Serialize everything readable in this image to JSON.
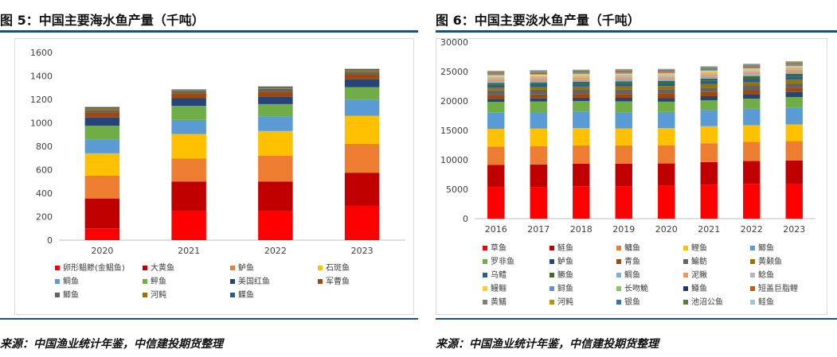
{
  "chart_data": [
    {
      "type": "bar",
      "stacked": true,
      "title": "图 5：中国主要海水鱼产量（千吨）",
      "source": "来源：中国渔业统计年鉴，中信建投期货整理",
      "categories": [
        "2020",
        "2021",
        "2022",
        "2023"
      ],
      "ylim": [
        0,
        1600
      ],
      "yticks": [
        0,
        200,
        400,
        600,
        800,
        1000,
        1200,
        1400,
        1600
      ],
      "grid": false,
      "legend_position": "bottom",
      "series": [
        {
          "name": "卵形鲳鲹(金鲳鱼)",
          "color": "#ff0000",
          "values": [
            100,
            245,
            245,
            295
          ]
        },
        {
          "name": "大黄鱼",
          "color": "#c00000",
          "values": [
            255,
            255,
            255,
            280
          ]
        },
        {
          "name": "鲈鱼",
          "color": "#ed7d31",
          "values": [
            195,
            195,
            220,
            245
          ]
        },
        {
          "name": "石斑鱼",
          "color": "#ffc000",
          "values": [
            190,
            210,
            210,
            240
          ]
        },
        {
          "name": "鲷鱼",
          "color": "#5b9bd5",
          "values": [
            120,
            120,
            125,
            135
          ]
        },
        {
          "name": "鲆鱼",
          "color": "#70ad47",
          "values": [
            115,
            120,
            105,
            110
          ]
        },
        {
          "name": "美国红鱼",
          "color": "#264478",
          "values": [
            70,
            65,
            65,
            65
          ]
        },
        {
          "name": "军曹鱼",
          "color": "#9e480e",
          "values": [
            40,
            40,
            40,
            40
          ]
        },
        {
          "name": "鲫鱼",
          "color": "#636363",
          "values": [
            25,
            20,
            25,
            25
          ]
        },
        {
          "name": "河鲀",
          "color": "#997300",
          "values": [
            15,
            10,
            10,
            15
          ]
        },
        {
          "name": "鲽鱼",
          "color": "#255e91",
          "values": [
            10,
            5,
            10,
            10
          ]
        }
      ]
    },
    {
      "type": "bar",
      "stacked": true,
      "title": "图 6：中国主要淡水鱼产量（千吨）",
      "source": "来源：中国渔业统计年鉴，中信建投期货整理",
      "categories": [
        "2016",
        "2017",
        "2018",
        "2019",
        "2020",
        "2021",
        "2022",
        "2023"
      ],
      "ylim": [
        0,
        30000
      ],
      "yticks": [
        0,
        5000,
        10000,
        15000,
        20000,
        25000,
        30000
      ],
      "grid": false,
      "legend_position": "bottom",
      "series": [
        {
          "name": "草鱼",
          "color": "#ff0000",
          "values": [
            5300,
            5350,
            5500,
            5530,
            5570,
            5760,
            5900,
            5950
          ]
        },
        {
          "name": "鲢鱼",
          "color": "#c00000",
          "values": [
            3850,
            3850,
            3850,
            3810,
            3810,
            3850,
            3890,
            3920
          ]
        },
        {
          "name": "鳙鱼",
          "color": "#ed7d31",
          "values": [
            3100,
            3100,
            3100,
            3100,
            3100,
            3200,
            3250,
            3300
          ]
        },
        {
          "name": "鲤鱼",
          "color": "#ffc000",
          "values": [
            3000,
            3000,
            2950,
            2900,
            2900,
            2900,
            2850,
            2850
          ]
        },
        {
          "name": "鲫鱼",
          "color": "#5b9bd5",
          "values": [
            2750,
            2800,
            2800,
            2750,
            2750,
            2750,
            2800,
            2800
          ]
        },
        {
          "name": "罗非鱼",
          "color": "#70ad47",
          "values": [
            1850,
            1800,
            1800,
            1850,
            1750,
            1650,
            1700,
            1850
          ]
        },
        {
          "name": "鲈鱼",
          "color": "#264478",
          "values": [
            500,
            550,
            550,
            600,
            650,
            700,
            750,
            850
          ]
        },
        {
          "name": "青鱼",
          "color": "#9e480e",
          "values": [
            650,
            650,
            650,
            650,
            700,
            700,
            750,
            750
          ]
        },
        {
          "name": "鳊鲂",
          "color": "#636363",
          "values": [
            800,
            800,
            750,
            750,
            750,
            750,
            750,
            750
          ]
        },
        {
          "name": "黄颡鱼",
          "color": "#997300",
          "values": [
            450,
            450,
            500,
            550,
            550,
            600,
            600,
            600
          ]
        },
        {
          "name": "乌鳢",
          "color": "#255e91",
          "values": [
            500,
            500,
            500,
            500,
            500,
            550,
            550,
            550
          ]
        },
        {
          "name": "鳜鱼",
          "color": "#43682b",
          "values": [
            300,
            300,
            300,
            350,
            350,
            400,
            400,
            450
          ]
        },
        {
          "name": "鲷鱼",
          "color": "#7cafdd",
          "values": [
            300,
            300,
            300,
            300,
            300,
            300,
            300,
            300
          ]
        },
        {
          "name": "泥鳅",
          "color": "#f1975a",
          "values": [
            400,
            400,
            400,
            400,
            400,
            400,
            400,
            400
          ]
        },
        {
          "name": "鲶鱼",
          "color": "#b7b7b7",
          "values": [
            350,
            350,
            350,
            350,
            350,
            350,
            350,
            350
          ]
        },
        {
          "name": "鳗鲡",
          "color": "#ffcd33",
          "values": [
            250,
            250,
            250,
            250,
            250,
            250,
            250,
            250
          ]
        },
        {
          "name": "鲟鱼",
          "color": "#698ed0",
          "values": [
            100,
            100,
            100,
            100,
            100,
            100,
            150,
            150
          ]
        },
        {
          "name": "长吻鮠",
          "color": "#8cc168",
          "values": [
            50,
            50,
            50,
            50,
            50,
            50,
            50,
            50
          ]
        },
        {
          "name": "鳟鱼",
          "color": "#1f3864",
          "values": [
            50,
            50,
            50,
            50,
            50,
            50,
            50,
            50
          ]
        },
        {
          "name": "短盖巨脂鲤",
          "color": "#c55a11",
          "values": [
            100,
            100,
            100,
            100,
            100,
            100,
            100,
            100
          ]
        },
        {
          "name": "黄鳝",
          "color": "#7f7f7f",
          "values": [
            300,
            300,
            300,
            300,
            300,
            300,
            300,
            300
          ]
        },
        {
          "name": "河鲀",
          "color": "#bf9000",
          "values": [
            50,
            50,
            50,
            50,
            50,
            50,
            50,
            50
          ]
        },
        {
          "name": "银鱼",
          "color": "#2e75b6",
          "values": [
            50,
            50,
            50,
            50,
            50,
            50,
            50,
            50
          ]
        },
        {
          "name": "池沼公鱼",
          "color": "#548235",
          "values": [
            50,
            50,
            50,
            50,
            50,
            50,
            50,
            50
          ]
        },
        {
          "name": "鲑鱼",
          "color": "#9dc3e6",
          "values": [
            50,
            50,
            50,
            50,
            50,
            50,
            50,
            50
          ]
        }
      ]
    }
  ]
}
